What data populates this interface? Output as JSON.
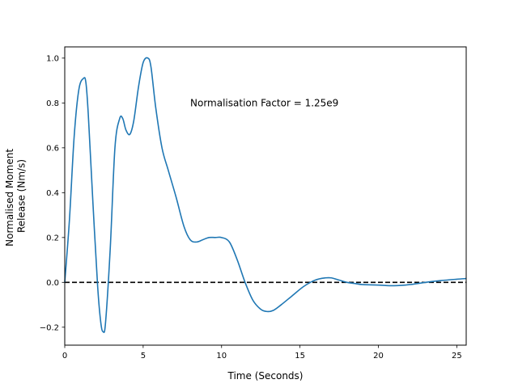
{
  "chart_data": {
    "type": "line",
    "title": "",
    "xlabel": "Time (Seconds)",
    "ylabel": [
      "Normalised Moment",
      "Release (Nm/s)"
    ],
    "xlim": [
      0,
      25.6
    ],
    "ylim": [
      -0.28,
      1.05
    ],
    "xticks": [
      0,
      5,
      10,
      15,
      20,
      25
    ],
    "yticks": [
      -0.2,
      0.0,
      0.2,
      0.4,
      0.6,
      0.8,
      1.0
    ],
    "xtick_labels": [
      "0",
      "5",
      "10",
      "15",
      "20",
      "25"
    ],
    "ytick_labels": [
      "−0.2",
      "0.0",
      "0.2",
      "0.4",
      "0.6",
      "0.8",
      "1.0"
    ],
    "grid": false,
    "annotation": {
      "text": "Normalisation Factor = 1.25e9",
      "x": 8.0,
      "y": 0.8
    },
    "reference_line": {
      "y": 0.0,
      "style": "dashed",
      "color": "#000000"
    },
    "series": [
      {
        "color": "#1f77b4",
        "x": [
          0.0,
          0.3,
          0.6,
          0.9,
          1.2,
          1.35,
          1.5,
          1.8,
          2.1,
          2.3,
          2.45,
          2.6,
          2.9,
          3.2,
          3.5,
          3.7,
          3.9,
          4.15,
          4.4,
          4.7,
          5.0,
          5.3,
          5.5,
          5.8,
          6.2,
          6.6,
          7.1,
          7.6,
          8.0,
          8.4,
          8.8,
          9.2,
          9.6,
          10.0,
          10.5,
          11.0,
          11.5,
          12.0,
          12.5,
          12.9,
          13.3,
          13.8,
          14.5,
          15.2,
          15.8,
          16.2,
          16.6,
          17.0,
          17.5,
          18.0,
          18.5,
          19.0,
          20.0,
          21.0,
          22.0,
          23.0,
          24.0,
          25.0,
          25.6
        ],
        "y": [
          0.0,
          0.28,
          0.65,
          0.86,
          0.91,
          0.89,
          0.75,
          0.35,
          -0.02,
          -0.18,
          -0.22,
          -0.18,
          0.15,
          0.6,
          0.73,
          0.73,
          0.68,
          0.66,
          0.72,
          0.87,
          0.98,
          1.0,
          0.96,
          0.78,
          0.6,
          0.5,
          0.38,
          0.25,
          0.19,
          0.18,
          0.19,
          0.2,
          0.2,
          0.2,
          0.18,
          0.1,
          0.0,
          -0.08,
          -0.12,
          -0.13,
          -0.125,
          -0.1,
          -0.06,
          -0.02,
          0.005,
          0.015,
          0.02,
          0.02,
          0.01,
          0.0,
          -0.005,
          -0.01,
          -0.012,
          -0.015,
          -0.01,
          0.0,
          0.008,
          0.014,
          0.017
        ]
      }
    ]
  }
}
